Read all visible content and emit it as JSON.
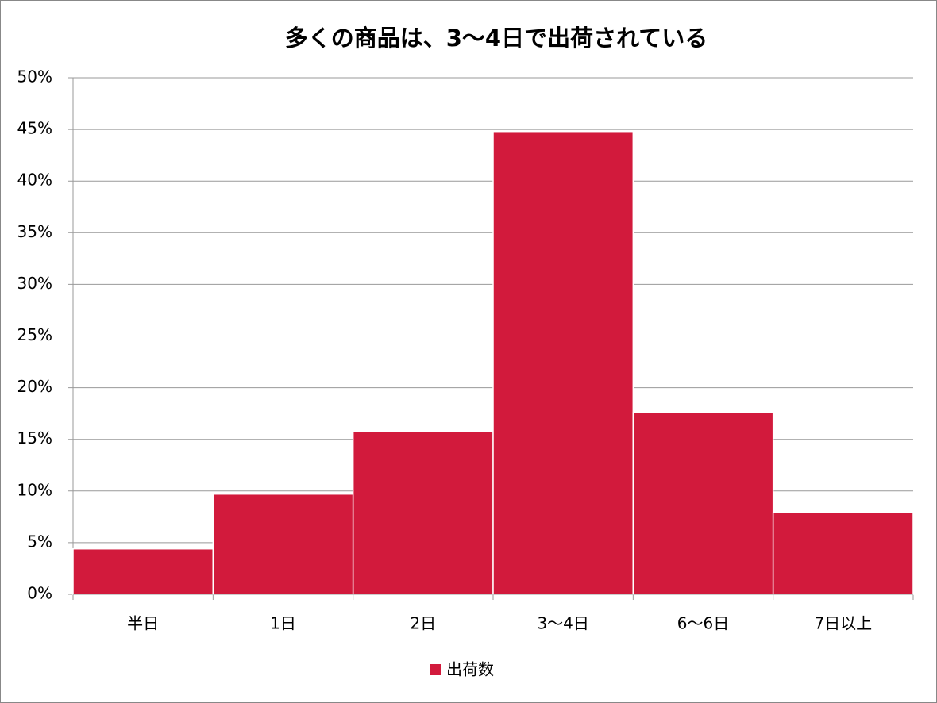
{
  "chart_data": {
    "type": "bar",
    "title": "多くの商品は、3〜4日で出荷されている",
    "categories": [
      "半日",
      "1日",
      "2日",
      "3〜4日",
      "6〜6日",
      "7日以上"
    ],
    "series": [
      {
        "name": "出荷数",
        "color": "#d21a3c",
        "values": [
          4.4,
          9.7,
          15.8,
          44.8,
          17.6,
          7.9
        ]
      }
    ],
    "ylim": [
      0,
      50
    ],
    "yticks": [
      {
        "value": 0,
        "label": "0%"
      },
      {
        "value": 5,
        "label": "5%"
      },
      {
        "value": 10,
        "label": "10%"
      },
      {
        "value": 15,
        "label": "15%"
      },
      {
        "value": 20,
        "label": "20%"
      },
      {
        "value": 25,
        "label": "25%"
      },
      {
        "value": 30,
        "label": "30%"
      },
      {
        "value": 35,
        "label": "35%"
      },
      {
        "value": 40,
        "label": "40%"
      },
      {
        "value": 45,
        "label": "45%"
      },
      {
        "value": 50,
        "label": "50%"
      }
    ],
    "grid": true,
    "legend": "bottom"
  }
}
